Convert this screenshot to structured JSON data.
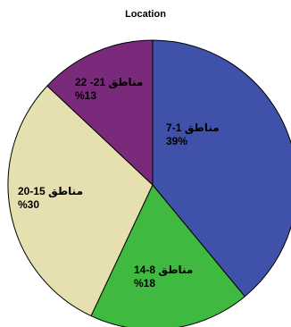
{
  "chart_data": {
    "type": "pie",
    "title": "Location",
    "slices": [
      {
        "name": "مناطق 1-7",
        "percent_label": "39%",
        "value": 39,
        "color": "#3f51a9"
      },
      {
        "name": "مناطق 8-14",
        "percent_label": "%18",
        "value": 18,
        "color": "#3fb93f"
      },
      {
        "name": "مناطق 15-20",
        "percent_label": "%30",
        "value": 30,
        "color": "#e6dfb0"
      },
      {
        "name": "مناطق 21- 22",
        "percent_label": "%13",
        "value": 13,
        "color": "#7a2a7a"
      }
    ],
    "start": "12 o'clock",
    "direction": "clockwise"
  }
}
